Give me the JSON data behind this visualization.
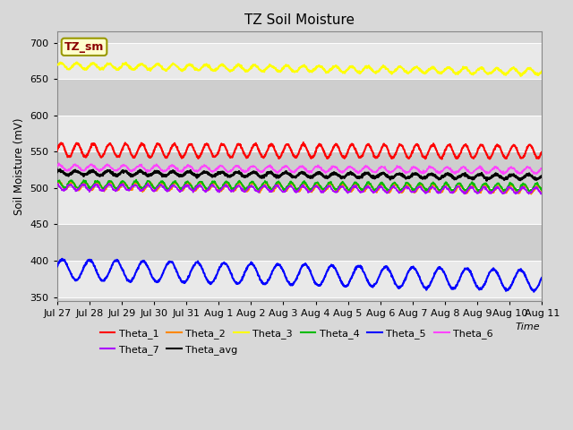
{
  "title": "TZ Soil Moisture",
  "xlabel": "Time",
  "ylabel": "Soil Moisture (mV)",
  "ylim": [
    345,
    715
  ],
  "yticks": [
    350,
    400,
    450,
    500,
    550,
    600,
    650,
    700
  ],
  "num_points": 1440,
  "days": 15,
  "xtick_labels": [
    "Jul 27",
    "Jul 28",
    "Jul 29",
    "Jul 30",
    "Jul 31",
    "Aug 1",
    "Aug 2",
    "Aug 3",
    "Aug 4",
    "Aug 5",
    "Aug 6",
    "Aug 7",
    "Aug 8",
    "Aug 9",
    "Aug 10",
    "Aug 11"
  ],
  "background_color": "#d8d8d8",
  "plot_bg_color": "#d8d8d8",
  "series": [
    {
      "name": "Theta_1",
      "color": "#ff0000",
      "base": 552,
      "trend": -2.0,
      "amp": 9,
      "freq": 2.0,
      "phase": 0.0,
      "linewidth": 1.5
    },
    {
      "name": "Theta_2",
      "color": "#ff8800",
      "base": 503,
      "trend": -5.0,
      "amp": 5,
      "freq": 2.5,
      "phase": 0.5,
      "linewidth": 1.2
    },
    {
      "name": "Theta_3",
      "color": "#ffff00",
      "base": 668,
      "trend": -8.0,
      "amp": 4,
      "freq": 2.0,
      "phase": 0.2,
      "linewidth": 1.5
    },
    {
      "name": "Theta_4",
      "color": "#00bb00",
      "base": 505,
      "trend": -4.0,
      "amp": 5,
      "freq": 2.5,
      "phase": 1.0,
      "linewidth": 1.2
    },
    {
      "name": "Theta_5",
      "color": "#0000ff",
      "base": 388,
      "trend": -15.0,
      "amp": 14,
      "freq": 1.2,
      "phase": 0.3,
      "linewidth": 1.5
    },
    {
      "name": "Theta_6",
      "color": "#ff44ff",
      "base": 528,
      "trend": -4.0,
      "amp": 4,
      "freq": 2.0,
      "phase": 0.8,
      "linewidth": 1.2
    },
    {
      "name": "Theta_7",
      "color": "#aa00ff",
      "base": 501,
      "trend": -4.5,
      "amp": 4,
      "freq": 2.5,
      "phase": 1.5,
      "linewidth": 1.2
    },
    {
      "name": "Theta_avg",
      "color": "#000000",
      "base": 521,
      "trend": -6.0,
      "amp": 3,
      "freq": 2.0,
      "phase": 0.6,
      "linewidth": 1.8
    }
  ],
  "legend_label": "TZ_sm",
  "legend_label_color": "#8b0000",
  "legend_label_bg": "#ffffcc",
  "legend_label_border": "#999900"
}
